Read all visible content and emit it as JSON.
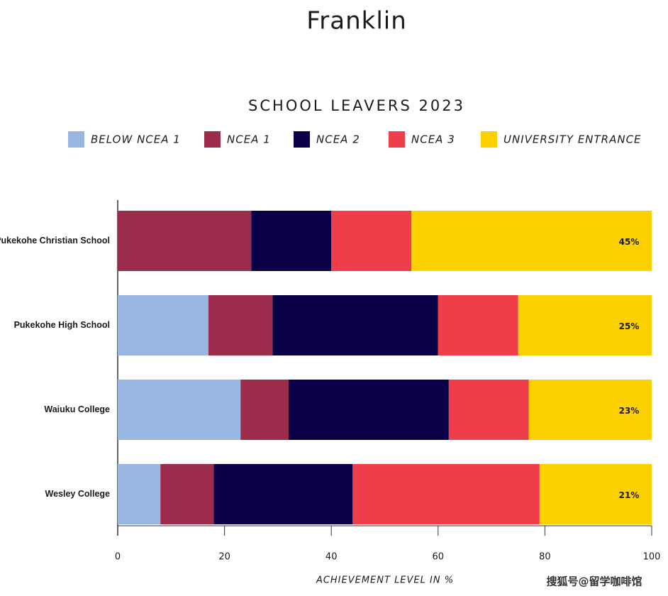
{
  "chart_data": {
    "type": "stacked-hbar",
    "title": "Franklin",
    "subtitle": "SCHOOL LEAVERS 2023",
    "x_label": "ACHIEVEMENT LEVEL IN %",
    "watermark": "搜狐号@留学咖啡馆",
    "categories": [
      "Pukekohe Christian School",
      "Pukekohe High School",
      "Waiuku College",
      "Wesley College"
    ],
    "series": [
      {
        "name": "BELOW NCEA 1",
        "color": "#97b6e0",
        "values": [
          0,
          17,
          23,
          8
        ]
      },
      {
        "name": "NCEA 1",
        "color": "#9b2c4c",
        "values": [
          25,
          12,
          9,
          10
        ]
      },
      {
        "name": "NCEA 2",
        "color": "#0a0048",
        "values": [
          15,
          31,
          30,
          26
        ]
      },
      {
        "name": "NCEA 3",
        "color": "#ef3e4a",
        "values": [
          15,
          15,
          15,
          35
        ]
      },
      {
        "name": "UNIVERSITY ENTRANCE",
        "color": "#fdd000",
        "values": [
          45,
          25,
          23,
          21
        ],
        "value_labels": [
          "45%",
          "25%",
          "23%",
          "21%"
        ]
      }
    ],
    "xlim": [
      0,
      100
    ],
    "xticks": [
      0,
      20,
      40,
      60,
      80,
      100
    ],
    "legend": "top"
  }
}
